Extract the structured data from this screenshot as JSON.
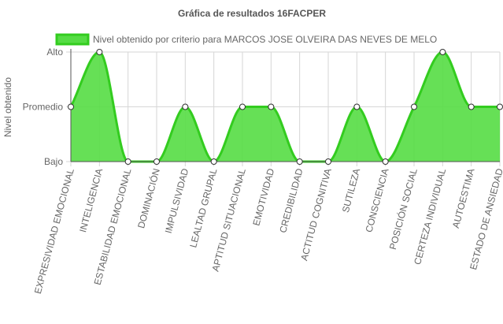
{
  "colors": {
    "line": "#33cc1f",
    "fill": "#55dd44",
    "grid": "#d6d6d6",
    "axis": "#555555",
    "text": "#666666",
    "title": "#555555",
    "point_fill": "#ffffff",
    "point_stroke": "#333333"
  },
  "chart_data": {
    "type": "area",
    "title": "Gráfica de resultados 16FACPER",
    "xlabel": "",
    "ylabel": "Nivel obtenido",
    "y_levels": [
      "Bajo",
      "Promedio",
      "Alto"
    ],
    "ylim": [
      0,
      2
    ],
    "legend_position": "top",
    "grid": true,
    "categories": [
      "EXPRESIVIDAD EMOCIONAL",
      "INTELIGENCIA",
      "ESTABILIDAD EMOCIONAL",
      "DOMINACIÓN",
      "IMPULSIVIDAD",
      "LEALTAD GRUPAL",
      "APTITUD SITUACIONAL",
      "EMOTIVIDAD",
      "CREDIBILIDAD",
      "ACTITUD COGNITIVA",
      "SUTILEZA",
      "CONSCIENCIA",
      "POSICIÓN SOCIAL",
      "CERTEZA INDIVIDUAL",
      "AUTOESTIMA",
      "ESTADO DE ANSIEDAD"
    ],
    "series": [
      {
        "name": "Nivel obtenido por criterio para MARCOS JOSE OLVEIRA DAS NEVES DE MELO",
        "values": [
          1,
          2,
          0,
          0,
          1,
          0,
          1,
          1,
          0,
          0,
          1,
          0,
          1,
          2,
          1,
          1
        ]
      }
    ]
  }
}
